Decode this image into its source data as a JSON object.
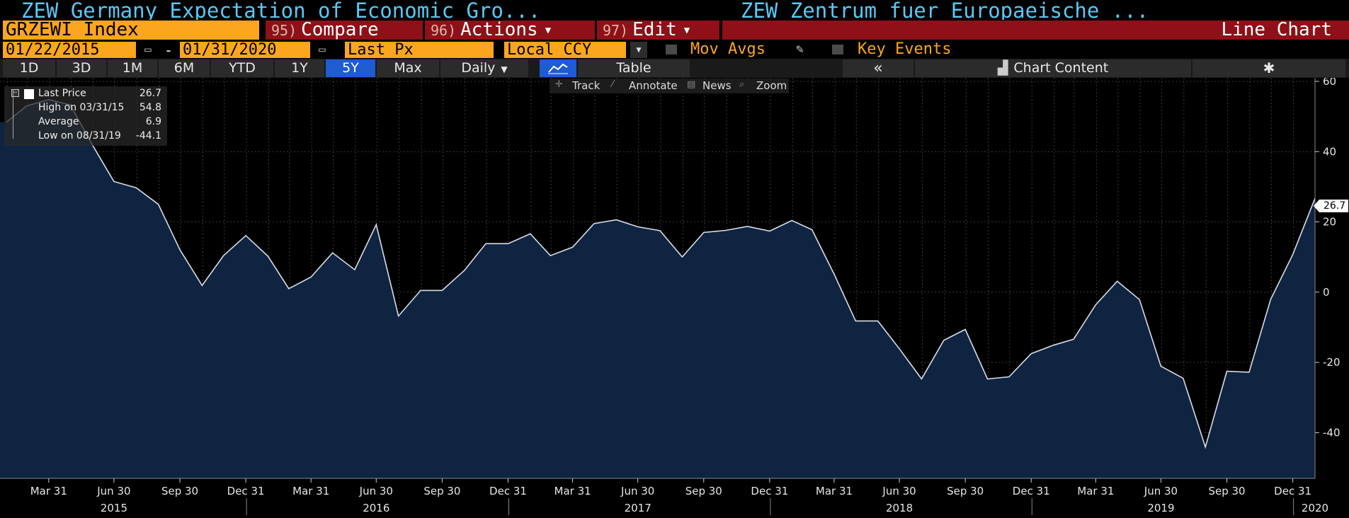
{
  "header": {
    "title_left": "ZEW Germany Expectation of Economic Gro...",
    "title_right": "ZEW Zentrum fuer Europaeische ..."
  },
  "command_bar": {
    "ticker": "GRZEWI Index",
    "compare": {
      "num": "95)",
      "label": "Compare"
    },
    "actions": {
      "num": "96)",
      "label": "Actions"
    },
    "edit": {
      "num": "97)",
      "label": "Edit"
    },
    "chart_type": "Line Chart"
  },
  "date_bar": {
    "start_date": "01/22/2015",
    "end_date": "01/31/2020",
    "dash": "-",
    "field": "Last Px",
    "currency": "Local CCY",
    "mov_avgs": "Mov Avgs",
    "key_events": "Key Events"
  },
  "range_bar": {
    "ranges": [
      "1D",
      "3D",
      "1M",
      "6M",
      "YTD",
      "1Y",
      "5Y",
      "Max"
    ],
    "active_range": "5Y",
    "frequency": "Daily",
    "table": "Table",
    "collapse": "«",
    "chart_content": "Chart Content"
  },
  "legend": {
    "last_price_label": "Last Price",
    "last_price_value": "26.7",
    "high_label": "High on 03/31/15",
    "high_value": "54.8",
    "average_label": "Average",
    "average_value": "6.9",
    "low_label": "Low on 08/31/19",
    "low_value": "-44.1"
  },
  "tools": {
    "track": "Track",
    "annotate": "Annotate",
    "news": "News",
    "zoom": "Zoom"
  },
  "last_tag": "26.7",
  "colors": {
    "accent_orange": "#fba61c",
    "title_blue": "#5bc8f5",
    "button_red": "#8f1018",
    "area_fill": "#0f2441",
    "active_blue": "#1f5bd1"
  },
  "icons": {
    "calendar": "calendar-icon",
    "pencil": "pencil-icon",
    "line_chart": "line-chart-icon",
    "gear": "gear-icon",
    "chart_content": "chart-content-icon"
  },
  "chart_data": {
    "type": "area",
    "x": [
      "2015-01-31",
      "2015-02-28",
      "2015-03-31",
      "2015-04-30",
      "2015-05-31",
      "2015-06-30",
      "2015-07-31",
      "2015-08-31",
      "2015-09-30",
      "2015-10-31",
      "2015-11-30",
      "2015-12-31",
      "2016-01-31",
      "2016-02-29",
      "2016-03-31",
      "2016-04-30",
      "2016-05-31",
      "2016-06-30",
      "2016-07-31",
      "2016-08-31",
      "2016-09-30",
      "2016-10-31",
      "2016-11-30",
      "2016-12-31",
      "2017-01-31",
      "2017-02-28",
      "2017-03-31",
      "2017-04-30",
      "2017-05-31",
      "2017-06-30",
      "2017-07-31",
      "2017-08-31",
      "2017-09-30",
      "2017-10-31",
      "2017-11-30",
      "2017-12-31",
      "2018-01-31",
      "2018-02-28",
      "2018-03-31",
      "2018-04-30",
      "2018-05-31",
      "2018-06-30",
      "2018-07-31",
      "2018-08-31",
      "2018-09-30",
      "2018-10-31",
      "2018-11-30",
      "2018-12-31",
      "2019-01-31",
      "2019-02-28",
      "2019-03-31",
      "2019-04-30",
      "2019-05-31",
      "2019-06-30",
      "2019-07-31",
      "2019-08-31",
      "2019-09-30",
      "2019-10-31",
      "2019-11-30",
      "2019-12-31",
      "2020-01-31"
    ],
    "values": [
      48.4,
      53.0,
      54.8,
      53.3,
      41.9,
      31.5,
      29.7,
      25.0,
      12.1,
      1.9,
      10.4,
      16.1,
      10.2,
      1.0,
      4.3,
      11.2,
      6.4,
      19.2,
      -6.8,
      0.5,
      0.5,
      6.2,
      13.8,
      13.8,
      16.6,
      10.4,
      12.8,
      19.5,
      20.6,
      18.6,
      17.5,
      10.0,
      17.0,
      17.6,
      18.7,
      17.4,
      20.4,
      17.8,
      5.1,
      -8.2,
      -8.2,
      -16.1,
      -24.7,
      -13.7,
      -10.6,
      -24.7,
      -24.1,
      -17.5,
      -15.1,
      -13.4,
      -3.6,
      3.1,
      -2.1,
      -21.1,
      -24.5,
      -44.1,
      -22.5,
      -22.8,
      -2.1,
      10.7,
      26.7
    ],
    "xlim": [
      "2015-01-22",
      "2020-01-31"
    ],
    "ylim": [
      -53,
      61
    ],
    "y_ticks": [
      60,
      40,
      20,
      0,
      -20,
      -40
    ],
    "x_tick_dates": [
      "2015-03-31",
      "2015-06-30",
      "2015-09-30",
      "2015-12-31",
      "2016-03-31",
      "2016-06-30",
      "2016-09-30",
      "2016-12-31",
      "2017-03-31",
      "2017-06-30",
      "2017-09-30",
      "2017-12-31",
      "2018-03-31",
      "2018-06-30",
      "2018-09-30",
      "2018-12-31",
      "2019-03-31",
      "2019-06-30",
      "2019-09-30",
      "2019-12-31"
    ],
    "x_tick_labels": [
      "Mar 31",
      "Jun 30",
      "Sep 30",
      "Dec 31",
      "Mar 31",
      "Jun 30",
      "Sep 30",
      "Dec 31",
      "Mar 31",
      "Jun 30",
      "Sep 30",
      "Dec 31",
      "Mar 31",
      "Jun 30",
      "Sep 30",
      "Dec 31",
      "Mar 31",
      "Jun 30",
      "Sep 30",
      "Dec 31"
    ],
    "year_labels": [
      {
        "label": "2015",
        "date": "2015-06-30"
      },
      {
        "label": "2016",
        "date": "2016-06-30"
      },
      {
        "label": "2017",
        "date": "2017-06-30"
      },
      {
        "label": "2018",
        "date": "2018-06-30"
      },
      {
        "label": "2019",
        "date": "2019-06-30"
      },
      {
        "label": "2020",
        "date": "2020-01-31"
      }
    ],
    "year_separators": [
      "2016-01-01",
      "2017-01-01",
      "2018-01-01",
      "2019-01-01",
      "2020-01-01"
    ],
    "grid": true,
    "legend_position": "top-left"
  }
}
